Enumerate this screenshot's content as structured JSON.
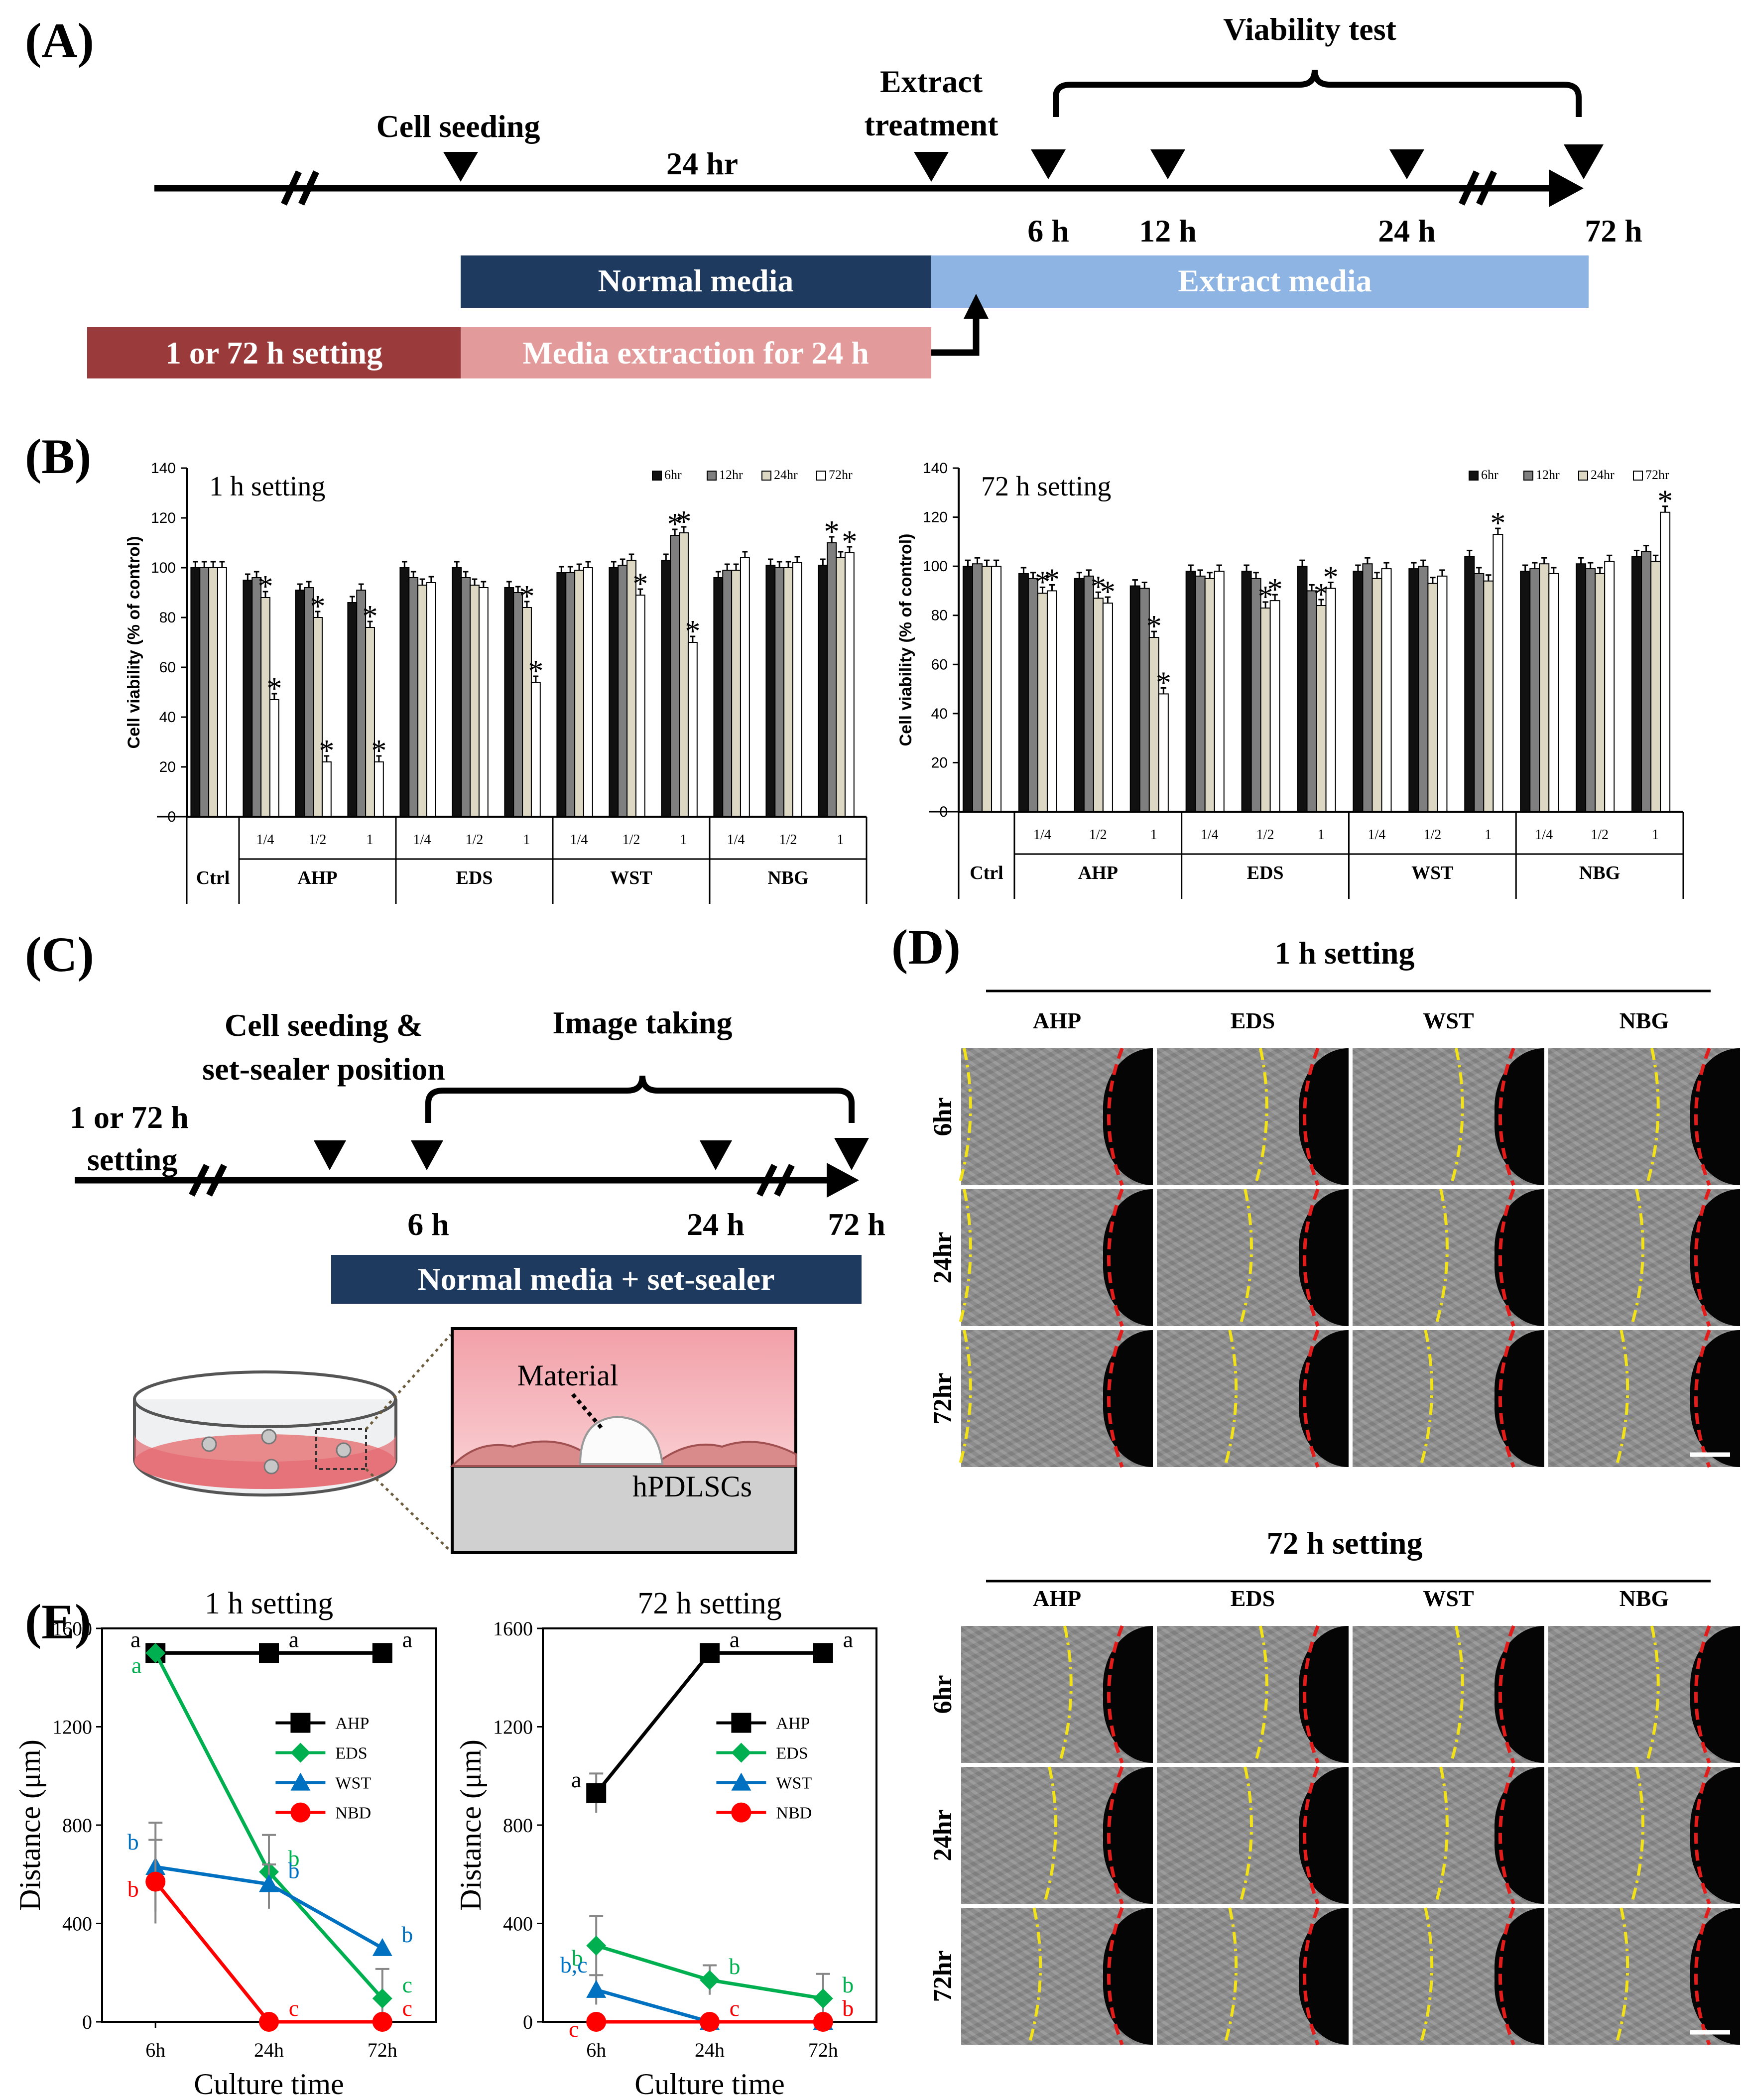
{
  "panel_labels": {
    "A": "(A)",
    "B": "(B)",
    "C": "(C)",
    "D": "(D)",
    "E": "(E)"
  },
  "timeline_a": {
    "viability_test": "Viability  test",
    "extract_treatment_line1": "Extract",
    "extract_treatment_line2": "treatment",
    "cell_seeding": "Cell seeding",
    "duration": "24 hr",
    "times": [
      "6 h",
      "12 h",
      "24 h",
      "72 h"
    ],
    "normal_media": "Normal media",
    "extract_media": "Extract media",
    "setting_bar": "1 or 72 h setting",
    "media_extraction": "Media extraction for 24 h",
    "colors": {
      "normal_media": "#1f3a5f",
      "extract_media": "#8db4e2",
      "setting_bar": "#9b3a3a",
      "media_extraction": "#e39a9a"
    }
  },
  "timeline_c": {
    "image_taking": "Image taking",
    "cell_seeding_line1": "Cell seeding &",
    "cell_seeding_line2": "set-sealer position",
    "setting_line1": "1 or 72 h",
    "setting_line2": "setting",
    "times": [
      "6 h",
      "24 h",
      "72 h"
    ],
    "normal_media_bar": "Normal media + set-sealer",
    "material_label": "Material",
    "cells_label": "hPDLSCs"
  },
  "panel_d": {
    "setting1_title": "1 h setting",
    "setting72_title": "72 h setting",
    "columns": [
      "AHP",
      "EDS",
      "WST",
      "NBG"
    ],
    "rows": [
      "6hr",
      "24hr",
      "72hr"
    ]
  },
  "chart_data": [
    {
      "type": "bar",
      "title": "1 h setting",
      "ylabel": "Cell viability (% of control)",
      "ylim": [
        0,
        140
      ],
      "yticks": [
        0,
        20,
        40,
        60,
        80,
        100,
        120,
        140
      ],
      "legend": [
        "6hr",
        "12hr",
        "24hr",
        "72hr"
      ],
      "series_colors": [
        "#111111",
        "#7f7f7f",
        "#ddd8c4",
        "#ffffff"
      ],
      "groups": [
        {
          "label": "Ctrl",
          "sub": [
            ""
          ],
          "values": [
            [
              100,
              100,
              100,
              100
            ]
          ],
          "stars": [
            [
              0,
              0,
              0,
              0
            ]
          ]
        },
        {
          "label": "AHP",
          "sub": [
            "1/4",
            "1/2",
            "1"
          ],
          "values": [
            [
              95,
              96,
              88,
              47
            ],
            [
              91,
              92,
              80,
              22
            ],
            [
              86,
              91,
              76,
              22
            ]
          ],
          "stars": [
            [
              0,
              0,
              1,
              1
            ],
            [
              0,
              0,
              1,
              1
            ],
            [
              0,
              0,
              1,
              1
            ]
          ]
        },
        {
          "label": "EDS",
          "sub": [
            "1/4",
            "1/2",
            "1"
          ],
          "values": [
            [
              100,
              96,
              93,
              94
            ],
            [
              100,
              96,
              93,
              92
            ],
            [
              92,
              90,
              84,
              54
            ]
          ],
          "stars": [
            [
              0,
              0,
              0,
              0
            ],
            [
              0,
              0,
              0,
              0
            ],
            [
              0,
              0,
              1,
              1
            ]
          ]
        },
        {
          "label": "WST",
          "sub": [
            "1/4",
            "1/2",
            "1"
          ],
          "values": [
            [
              98,
              98,
              99,
              100
            ],
            [
              100,
              101,
              103,
              89
            ],
            [
              103,
              113,
              114,
              70
            ]
          ],
          "stars": [
            [
              0,
              0,
              0,
              0
            ],
            [
              0,
              0,
              0,
              1
            ],
            [
              0,
              1,
              1,
              1
            ]
          ]
        },
        {
          "label": "NBG",
          "sub": [
            "1/4",
            "1/2",
            "1"
          ],
          "values": [
            [
              96,
              99,
              99,
              104
            ],
            [
              101,
              100,
              100,
              102
            ],
            [
              101,
              110,
              104,
              106
            ]
          ],
          "stars": [
            [
              0,
              0,
              0,
              0
            ],
            [
              0,
              0,
              0,
              0
            ],
            [
              0,
              1,
              0,
              1
            ]
          ]
        }
      ]
    },
    {
      "type": "bar",
      "title": "72 h setting",
      "ylabel": "Cell viability (% of control)",
      "ylim": [
        0,
        140
      ],
      "yticks": [
        0,
        20,
        40,
        60,
        80,
        100,
        120,
        140
      ],
      "legend": [
        "6hr",
        "12hr",
        "24hr",
        "72hr"
      ],
      "series_colors": [
        "#111111",
        "#7f7f7f",
        "#ddd8c4",
        "#ffffff"
      ],
      "groups": [
        {
          "label": "Ctrl",
          "sub": [
            ""
          ],
          "values": [
            [
              100,
              101,
              100,
              100
            ]
          ],
          "stars": [
            [
              0,
              0,
              0,
              0
            ]
          ]
        },
        {
          "label": "AHP",
          "sub": [
            "1/4",
            "1/2",
            "1"
          ],
          "values": [
            [
              97,
              95,
              89,
              90
            ],
            [
              95,
              96,
              87,
              85
            ],
            [
              92,
              91,
              71,
              48
            ]
          ],
          "stars": [
            [
              0,
              0,
              1,
              1
            ],
            [
              0,
              0,
              1,
              1
            ],
            [
              0,
              0,
              1,
              1
            ]
          ]
        },
        {
          "label": "EDS",
          "sub": [
            "1/4",
            "1/2",
            "1"
          ],
          "values": [
            [
              98,
              96,
              95,
              98
            ],
            [
              98,
              95,
              83,
              86
            ],
            [
              100,
              90,
              84,
              91
            ]
          ],
          "stars": [
            [
              0,
              0,
              0,
              0
            ],
            [
              0,
              0,
              1,
              1
            ],
            [
              0,
              0,
              1,
              1
            ]
          ]
        },
        {
          "label": "WST",
          "sub": [
            "1/4",
            "1/2",
            "1"
          ],
          "values": [
            [
              98,
              101,
              95,
              99
            ],
            [
              99,
              100,
              93,
              96
            ],
            [
              104,
              97,
              94,
              113
            ]
          ],
          "stars": [
            [
              0,
              0,
              0,
              0
            ],
            [
              0,
              0,
              0,
              0
            ],
            [
              0,
              0,
              0,
              1
            ]
          ]
        },
        {
          "label": "NBG",
          "sub": [
            "1/4",
            "1/2",
            "1"
          ],
          "values": [
            [
              98,
              99,
              101,
              97
            ],
            [
              101,
              99,
              97,
              102
            ],
            [
              104,
              106,
              102,
              122
            ]
          ],
          "stars": [
            [
              0,
              0,
              0,
              0
            ],
            [
              0,
              0,
              0,
              0
            ],
            [
              0,
              0,
              0,
              1
            ]
          ]
        }
      ]
    },
    {
      "type": "line",
      "title": "1 h setting",
      "xlabel": "Culture time",
      "ylabel": "Distance (μm)",
      "ylim": [
        0,
        1600
      ],
      "yticks": [
        0,
        400,
        800,
        1200,
        1600
      ],
      "categories": [
        "6h",
        "24h",
        "72h"
      ],
      "series": [
        {
          "name": "AHP",
          "color": "#000000",
          "marker": "square",
          "values": [
            1500,
            1500,
            1500
          ],
          "err": [
            0,
            0,
            0
          ],
          "letters": [
            "a",
            "a",
            "a"
          ]
        },
        {
          "name": "EDS",
          "color": "#00b050",
          "marker": "diamond",
          "values": [
            1500,
            610,
            95
          ],
          "err": [
            0,
            150,
            120
          ],
          "letters": [
            "a",
            "b",
            "c"
          ]
        },
        {
          "name": "WST",
          "color": "#0070c0",
          "marker": "triangle",
          "values": [
            630,
            560,
            300
          ],
          "err": [
            180,
            80,
            0
          ],
          "letters": [
            "b",
            "b",
            "b"
          ]
        },
        {
          "name": "NBD",
          "color": "#ff0000",
          "marker": "circle",
          "values": [
            570,
            0,
            0
          ],
          "err": [
            170,
            0,
            0
          ],
          "letters": [
            "b",
            "c",
            "c"
          ]
        }
      ]
    },
    {
      "type": "line",
      "title": "72 h setting",
      "xlabel": "Culture time",
      "ylabel": "Distance (μm)",
      "ylim": [
        0,
        1600
      ],
      "yticks": [
        0,
        400,
        800,
        1200,
        1600
      ],
      "categories": [
        "6h",
        "24h",
        "72h"
      ],
      "series": [
        {
          "name": "AHP",
          "color": "#000000",
          "marker": "square",
          "values": [
            930,
            1500,
            1500
          ],
          "err": [
            80,
            0,
            0
          ],
          "letters": [
            "a",
            "a",
            "a"
          ]
        },
        {
          "name": "EDS",
          "color": "#00b050",
          "marker": "diamond",
          "values": [
            310,
            170,
            95
          ],
          "err": [
            120,
            60,
            100
          ],
          "letters": [
            "b",
            "b",
            "b"
          ]
        },
        {
          "name": "WST",
          "color": "#0070c0",
          "marker": "triangle",
          "values": [
            130,
            0,
            0
          ],
          "err": [
            60,
            0,
            0
          ],
          "letters": [
            "b,c",
            "c",
            "b"
          ]
        },
        {
          "name": "NBD",
          "color": "#ff0000",
          "marker": "circle",
          "values": [
            0,
            0,
            0
          ],
          "err": [
            0,
            0,
            0
          ],
          "letters": [
            "c",
            "c",
            "b"
          ]
        }
      ]
    }
  ]
}
